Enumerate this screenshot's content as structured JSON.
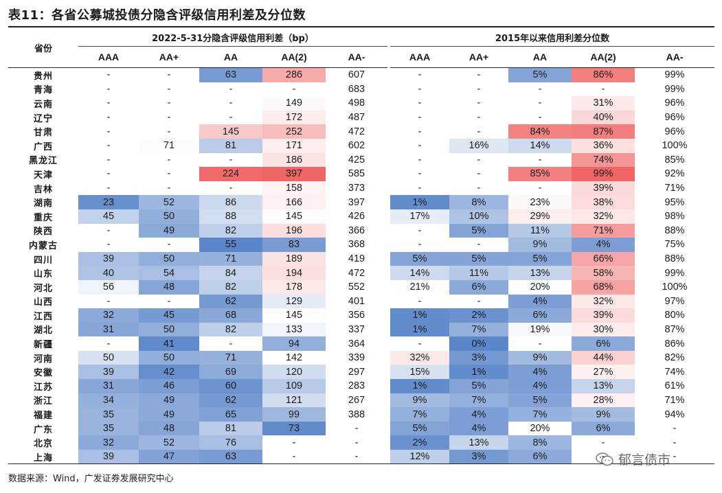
{
  "title": "表11：各省公募城投债分隐含评级信用利差及分位数",
  "header": {
    "province": "省份",
    "group1": "2022-5-31分隐含评级信用利差（bp）",
    "group2": "2015年以来信用利差分位数",
    "ratings": [
      "AAA",
      "AA+",
      "AA",
      "AA(2)",
      "AA-"
    ]
  },
  "colors": {
    "blue_strong": "#5b86c9",
    "red_strong": "#f06464",
    "neutral": "#ffffff"
  },
  "rows": [
    {
      "prov": "贵州",
      "spreads": [
        "-",
        "-",
        "63",
        "286",
        "607"
      ],
      "pct": [
        "-",
        "-",
        "5%",
        "86%",
        "99%"
      ]
    },
    {
      "prov": "青海",
      "spreads": [
        "-",
        "-",
        "-",
        "-",
        "683"
      ],
      "pct": [
        "-",
        "-",
        "-",
        "-",
        "99%"
      ]
    },
    {
      "prov": "云南",
      "spreads": [
        "-",
        "-",
        "-",
        "149",
        "498"
      ],
      "pct": [
        "-",
        "-",
        "-",
        "31%",
        "96%"
      ]
    },
    {
      "prov": "辽宁",
      "spreads": [
        "-",
        "-",
        "-",
        "172",
        "487"
      ],
      "pct": [
        "-",
        "-",
        "-",
        "40%",
        "96%"
      ]
    },
    {
      "prov": "甘肃",
      "spreads": [
        "-",
        "-",
        "145",
        "252",
        "472"
      ],
      "pct": [
        "-",
        "-",
        "84%",
        "87%",
        "96%"
      ]
    },
    {
      "prov": "广西",
      "spreads": [
        "-",
        "71",
        "81",
        "171",
        "602"
      ],
      "pct": [
        "-",
        "16%",
        "14%",
        "36%",
        "100%"
      ]
    },
    {
      "prov": "黑龙江",
      "spreads": [
        "-",
        "-",
        "-",
        "186",
        "425"
      ],
      "pct": [
        "-",
        "-",
        "-",
        "74%",
        "85%"
      ]
    },
    {
      "prov": "天津",
      "spreads": [
        "-",
        "-",
        "224",
        "397",
        "585"
      ],
      "pct": [
        "-",
        "-",
        "85%",
        "99%",
        "92%"
      ]
    },
    {
      "prov": "吉林",
      "spreads": [
        "-",
        "-",
        "-",
        "158",
        "373"
      ],
      "pct": [
        "-",
        "-",
        "-",
        "39%",
        "71%"
      ]
    },
    {
      "prov": "湖南",
      "spreads": [
        "23",
        "52",
        "86",
        "166",
        "397"
      ],
      "pct": [
        "1%",
        "8%",
        "23%",
        "38%",
        "95%"
      ]
    },
    {
      "prov": "重庆",
      "spreads": [
        "45",
        "50",
        "88",
        "145",
        "426"
      ],
      "pct": [
        "17%",
        "10%",
        "29%",
        "32%",
        "98%"
      ]
    },
    {
      "prov": "陕西",
      "spreads": [
        "-",
        "49",
        "82",
        "196",
        "366"
      ],
      "pct": [
        "-",
        "5%",
        "11%",
        "71%",
        "88%"
      ]
    },
    {
      "prov": "内蒙古",
      "spreads": [
        "-",
        "-",
        "55",
        "83",
        "368"
      ],
      "pct": [
        "-",
        "-",
        "9%",
        "4%",
        "75%"
      ]
    },
    {
      "prov": "四川",
      "spreads": [
        "39",
        "50",
        "71",
        "189",
        "419"
      ],
      "pct": [
        "5%",
        "5%",
        "5%",
        "66%",
        "88%"
      ]
    },
    {
      "prov": "山东",
      "spreads": [
        "40",
        "54",
        "84",
        "194",
        "472"
      ],
      "pct": [
        "14%",
        "11%",
        "13%",
        "58%",
        "99%"
      ]
    },
    {
      "prov": "河北",
      "spreads": [
        "56",
        "48",
        "82",
        "178",
        "552"
      ],
      "pct": [
        "21%",
        "6%",
        "20%",
        "68%",
        "100%"
      ]
    },
    {
      "prov": "山西",
      "spreads": [
        "-",
        "-",
        "62",
        "129",
        "401"
      ],
      "pct": [
        "-",
        "-",
        "4%",
        "32%",
        "97%"
      ]
    },
    {
      "prov": "江西",
      "spreads": [
        "32",
        "45",
        "68",
        "145",
        "356"
      ],
      "pct": [
        "1%",
        "2%",
        "6%",
        "39%",
        "80%"
      ]
    },
    {
      "prov": "湖北",
      "spreads": [
        "31",
        "50",
        "82",
        "133",
        "337"
      ],
      "pct": [
        "1%",
        "7%",
        "19%",
        "30%",
        "87%"
      ]
    },
    {
      "prov": "新疆",
      "spreads": [
        "-",
        "41",
        "-",
        "94",
        "364"
      ],
      "pct": [
        "-",
        "0%",
        "-",
        "6%",
        "86%"
      ]
    },
    {
      "prov": "河南",
      "spreads": [
        "50",
        "50",
        "71",
        "142",
        "339"
      ],
      "pct": [
        "32%",
        "3%",
        "9%",
        "44%",
        "82%"
      ]
    },
    {
      "prov": "安徽",
      "spreads": [
        "39",
        "42",
        "69",
        "120",
        "297"
      ],
      "pct": [
        "15%",
        "1%",
        "4%",
        "27%",
        "74%"
      ]
    },
    {
      "prov": "江苏",
      "spreads": [
        "31",
        "46",
        "60",
        "109",
        "283"
      ],
      "pct": [
        "1%",
        "5%",
        "4%",
        "13%",
        "61%"
      ]
    },
    {
      "prov": "浙江",
      "spreads": [
        "34",
        "49",
        "62",
        "121",
        "267"
      ],
      "pct": [
        "9%",
        "7%",
        "5%",
        "28%",
        "71%"
      ]
    },
    {
      "prov": "福建",
      "spreads": [
        "35",
        "49",
        "65",
        "99",
        "388"
      ],
      "pct": [
        "7%",
        "4%",
        "7%",
        "9%",
        "94%"
      ]
    },
    {
      "prov": "广东",
      "spreads": [
        "35",
        "48",
        "81",
        "73",
        "-"
      ],
      "pct": [
        "5%",
        "4%",
        "20%",
        "6%",
        "-"
      ]
    },
    {
      "prov": "北京",
      "spreads": [
        "32",
        "52",
        "76",
        "-",
        "-"
      ],
      "pct": [
        "2%",
        "13%",
        "8%",
        "-",
        "-"
      ]
    },
    {
      "prov": "上海",
      "spreads": [
        "39",
        "47",
        "63",
        "-",
        "-"
      ],
      "pct": [
        "12%",
        "3%",
        "6%",
        "-",
        "-"
      ]
    }
  ],
  "source": "数据来源：Wind，广发证券发展研究中心",
  "watermark": "郁言债市"
}
